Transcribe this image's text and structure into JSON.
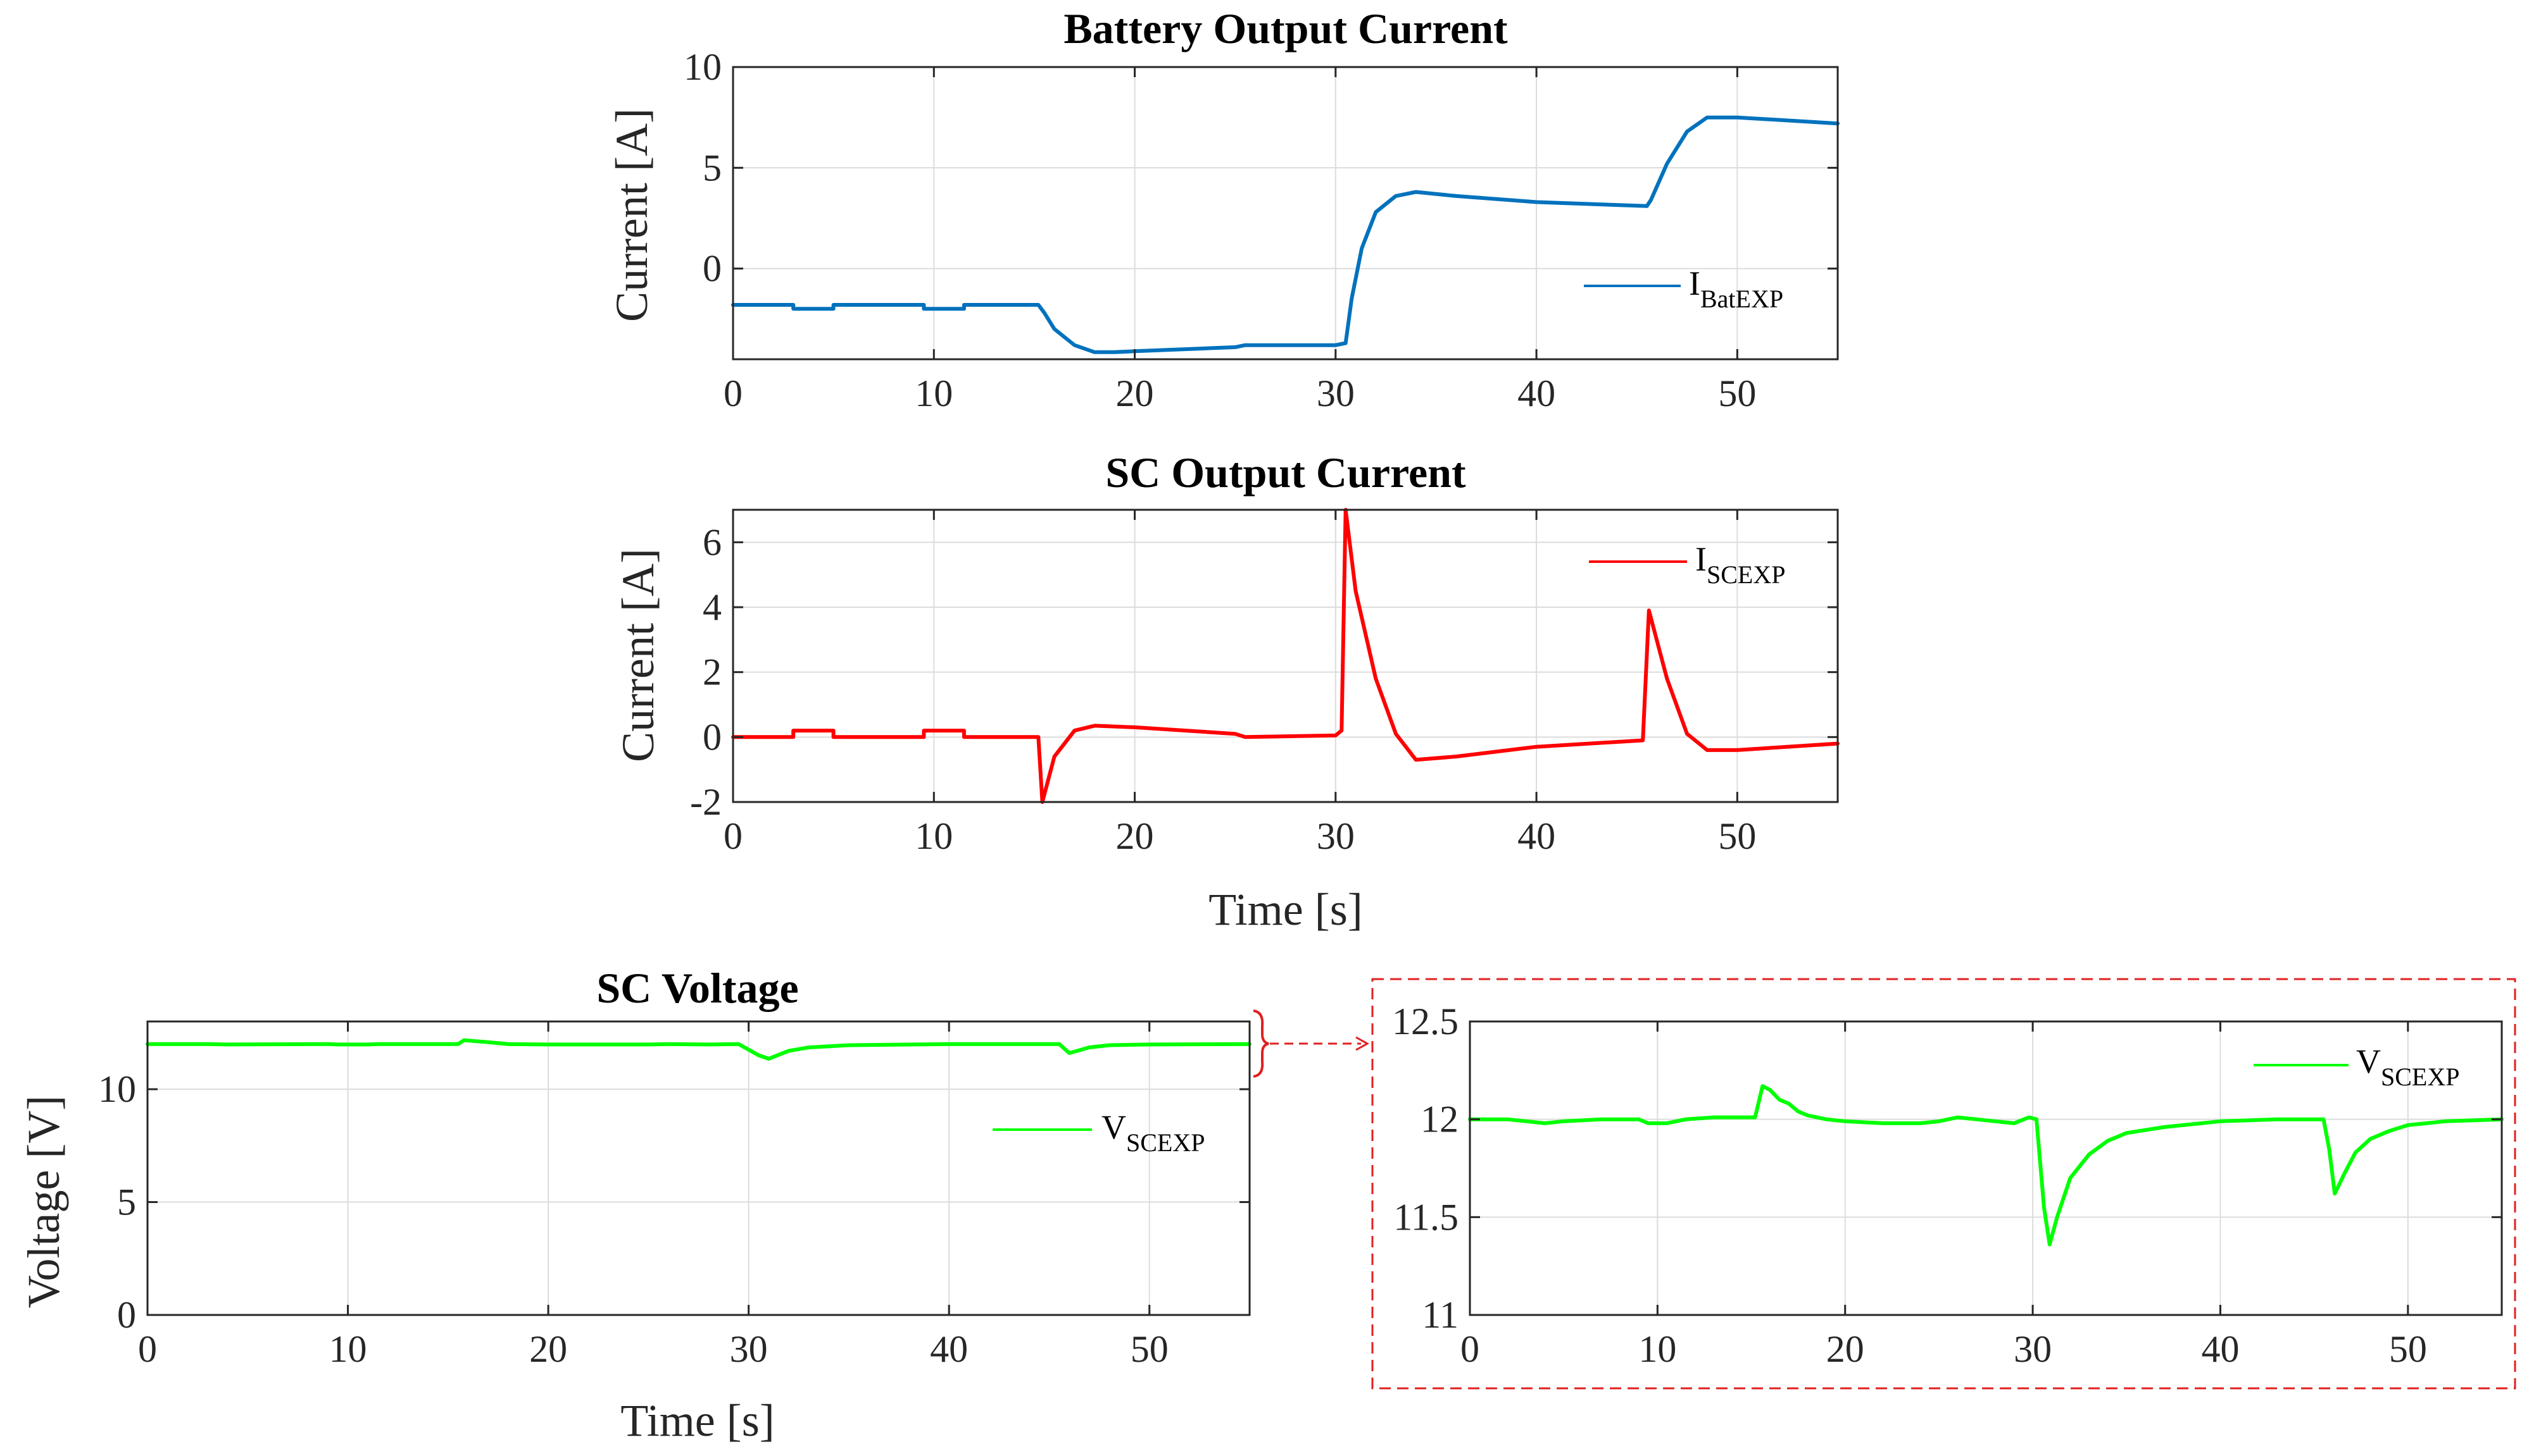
{
  "colors": {
    "battery": "#0072BD",
    "sc_current": "#FF0000",
    "sc_voltage": "#00FF00",
    "grid": "#dcdcdc",
    "axis": "#262626",
    "zoom_box": "#E02020"
  },
  "chart_data": [
    {
      "id": "battery",
      "type": "line",
      "title": "Battery Output Current",
      "xlabel": "",
      "ylabel": "Current [A]",
      "xlim": [
        0,
        55
      ],
      "ylim": [
        -4.5,
        10
      ],
      "xticks": [
        0,
        10,
        20,
        30,
        40,
        50
      ],
      "yticks": [
        0,
        5,
        10
      ],
      "grid": true,
      "legend_position": "right",
      "legend_label": "I",
      "legend_sub": "BatEXP",
      "series": [
        {
          "name": "IBatEXP",
          "x": [
            0,
            3,
            3,
            5,
            5,
            9.5,
            9.5,
            11.5,
            11.5,
            15.2,
            15.5,
            16,
            17,
            18,
            19,
            20,
            25,
            25.5,
            30,
            30.5,
            30.8,
            31.3,
            32,
            33,
            34,
            36,
            40,
            45.5,
            45.7,
            46.5,
            47.5,
            48.5,
            50,
            55
          ],
          "values": [
            -1.8,
            -1.8,
            -2.0,
            -2.0,
            -1.8,
            -1.8,
            -2.0,
            -2.0,
            -1.8,
            -1.8,
            -2.2,
            -3.0,
            -3.8,
            -4.15,
            -4.15,
            -4.1,
            -3.9,
            -3.8,
            -3.8,
            -3.7,
            -1.5,
            1.0,
            2.8,
            3.6,
            3.8,
            3.6,
            3.3,
            3.1,
            3.4,
            5.2,
            6.8,
            7.5,
            7.5,
            7.2
          ]
        }
      ]
    },
    {
      "id": "sc_current",
      "type": "line",
      "title": "SC Output Current",
      "xlabel": "Time [s]",
      "ylabel": "Current [A]",
      "xlim": [
        0,
        55
      ],
      "ylim": [
        -2,
        7
      ],
      "xticks": [
        0,
        10,
        20,
        30,
        40,
        50
      ],
      "yticks": [
        -2,
        0,
        2,
        4,
        6
      ],
      "grid": true,
      "legend_position": "top-right",
      "legend_label": "I",
      "legend_sub": "SCEXP",
      "series": [
        {
          "name": "ISCEXP",
          "x": [
            0,
            3,
            3,
            5,
            5,
            9.5,
            9.5,
            11.5,
            11.5,
            15.2,
            15.4,
            16,
            17,
            18,
            20,
            25,
            25.5,
            30,
            30.3,
            30.5,
            31,
            32,
            33,
            34,
            36,
            40,
            45.3,
            45.6,
            46.5,
            47.5,
            48.5,
            50,
            55
          ],
          "values": [
            0,
            0,
            0.2,
            0.2,
            0,
            0,
            0.2,
            0.2,
            0,
            0,
            -2.0,
            -0.6,
            0.2,
            0.35,
            0.3,
            0.1,
            0,
            0.05,
            0.2,
            7.0,
            4.5,
            1.8,
            0.1,
            -0.7,
            -0.6,
            -0.3,
            -0.1,
            3.9,
            1.8,
            0.1,
            -0.4,
            -0.4,
            -0.2
          ]
        }
      ]
    },
    {
      "id": "sc_voltage",
      "type": "line",
      "title": "SC Voltage",
      "xlabel": "Time [s]",
      "ylabel": "Voltage [V]",
      "xlim": [
        0,
        55
      ],
      "ylim": [
        0,
        13
      ],
      "xticks": [
        0,
        10,
        20,
        30,
        40,
        50
      ],
      "yticks": [
        0,
        5,
        10
      ],
      "grid": true,
      "legend_position": "right",
      "legend_label": "V",
      "legend_sub": "SCEXP",
      "series": [
        {
          "name": "VSCEXP",
          "x": [
            0,
            3,
            4,
            9,
            9.5,
            11,
            11.5,
            15.5,
            15.8,
            17,
            18,
            20,
            25,
            26,
            28,
            29.5,
            30.5,
            31,
            32,
            33,
            35,
            40,
            45.5,
            46,
            47,
            48,
            50,
            55
          ],
          "values": [
            12.0,
            12.0,
            11.98,
            12.0,
            11.98,
            11.98,
            12.0,
            12.0,
            12.17,
            12.08,
            12.0,
            11.98,
            11.98,
            12.0,
            11.98,
            12.0,
            11.5,
            11.35,
            11.7,
            11.85,
            11.95,
            12.0,
            12.0,
            11.6,
            11.85,
            11.95,
            11.98,
            12.0
          ]
        }
      ]
    },
    {
      "id": "sc_voltage_zoom",
      "type": "line",
      "title": "",
      "xlabel": "",
      "ylabel": "",
      "xlim": [
        0,
        55
      ],
      "ylim": [
        11,
        12.5
      ],
      "xticks": [
        0,
        10,
        20,
        30,
        40,
        50
      ],
      "yticks": [
        11,
        11.5,
        12,
        12.5
      ],
      "ytick_labels": [
        "11",
        "11.5",
        "12",
        "12.5"
      ],
      "grid": true,
      "legend_position": "top-right",
      "legend_label": "V",
      "legend_sub": "SCEXP",
      "series": [
        {
          "name": "VSCEXP",
          "x": [
            0,
            2,
            3,
            4,
            5,
            7,
            8,
            9,
            9.5,
            10.5,
            11.5,
            13,
            15.2,
            15.6,
            16,
            16.5,
            17,
            17.5,
            18,
            19,
            20,
            22,
            24,
            25,
            26,
            27,
            28,
            29,
            29.8,
            30.2,
            30.6,
            30.9,
            31.3,
            32,
            33,
            34,
            35,
            37,
            40,
            43,
            45.5,
            45.8,
            46.1,
            46.6,
            47.2,
            48,
            49,
            50,
            52,
            55
          ],
          "values": [
            12.0,
            12.0,
            11.99,
            11.98,
            11.99,
            12.0,
            12.0,
            12.0,
            11.98,
            11.98,
            12.0,
            12.01,
            12.01,
            12.17,
            12.15,
            12.1,
            12.08,
            12.04,
            12.02,
            12.0,
            11.99,
            11.98,
            11.98,
            11.99,
            12.01,
            12.0,
            11.99,
            11.98,
            12.01,
            12.0,
            11.55,
            11.36,
            11.5,
            11.7,
            11.82,
            11.89,
            11.93,
            11.96,
            11.99,
            12.0,
            12.0,
            11.85,
            11.62,
            11.72,
            11.83,
            11.9,
            11.94,
            11.97,
            11.99,
            12.0
          ]
        }
      ]
    }
  ]
}
